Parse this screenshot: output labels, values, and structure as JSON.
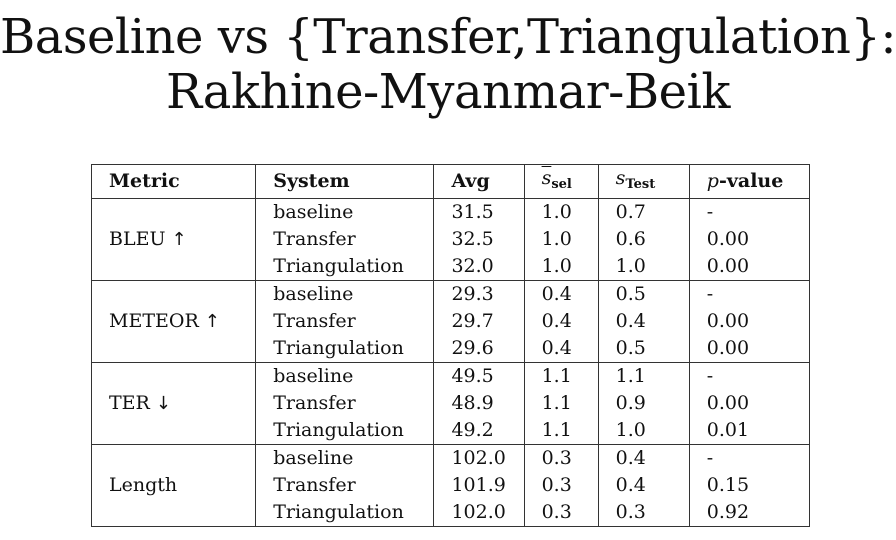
{
  "title": {
    "line1": "Baseline vs {Transfer,Triangulation}:",
    "line2": "Rakhine-Myanmar-Beik"
  },
  "table": {
    "headers": {
      "metric": "Metric",
      "system": "System",
      "avg": "Avg",
      "ssel_symbol": "s",
      "ssel_sub": "sel",
      "stest_symbol": "s",
      "stest_sub": "Test",
      "p_symbol": "p",
      "p_rest": "-value"
    },
    "groups": [
      {
        "metric": "BLEU",
        "arrow": "↑",
        "rows": [
          {
            "system": "baseline",
            "avg": "31.5",
            "ssel": "1.0",
            "stest": "0.7",
            "p": "-"
          },
          {
            "system": "Transfer",
            "avg": "32.5",
            "ssel": "1.0",
            "stest": "0.6",
            "p": "0.00"
          },
          {
            "system": "Triangulation",
            "avg": "32.0",
            "ssel": "1.0",
            "stest": "1.0",
            "p": "0.00"
          }
        ]
      },
      {
        "metric": "METEOR",
        "arrow": "↑",
        "rows": [
          {
            "system": "baseline",
            "avg": "29.3",
            "ssel": "0.4",
            "stest": "0.5",
            "p": "-"
          },
          {
            "system": "Transfer",
            "avg": "29.7",
            "ssel": "0.4",
            "stest": "0.4",
            "p": "0.00"
          },
          {
            "system": "Triangulation",
            "avg": "29.6",
            "ssel": "0.4",
            "stest": "0.5",
            "p": "0.00"
          }
        ]
      },
      {
        "metric": "TER",
        "arrow": "↓",
        "rows": [
          {
            "system": "baseline",
            "avg": "49.5",
            "ssel": "1.1",
            "stest": "1.1",
            "p": "-"
          },
          {
            "system": "Transfer",
            "avg": "48.9",
            "ssel": "1.1",
            "stest": "0.9",
            "p": "0.00"
          },
          {
            "system": "Triangulation",
            "avg": "49.2",
            "ssel": "1.1",
            "stest": "1.0",
            "p": "0.01"
          }
        ]
      },
      {
        "metric": "Length",
        "arrow": "",
        "rows": [
          {
            "system": "baseline",
            "avg": "102.0",
            "ssel": "0.3",
            "stest": "0.4",
            "p": "-"
          },
          {
            "system": "Transfer",
            "avg": "101.9",
            "ssel": "0.3",
            "stest": "0.4",
            "p": "0.15"
          },
          {
            "system": "Triangulation",
            "avg": "102.0",
            "ssel": "0.3",
            "stest": "0.3",
            "p": "0.92"
          }
        ]
      }
    ]
  }
}
